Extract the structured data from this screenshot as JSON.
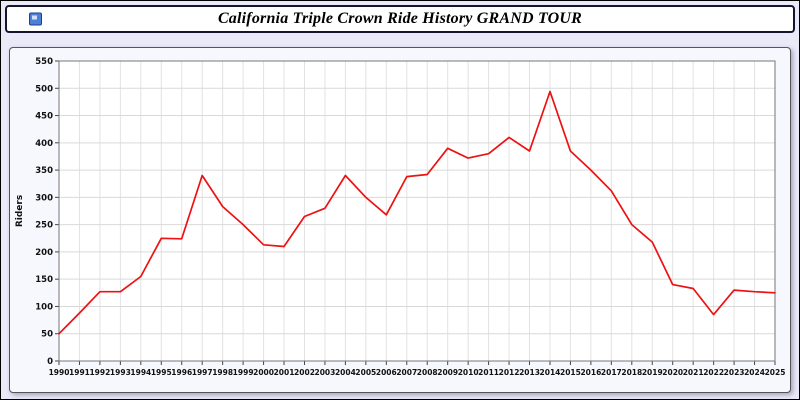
{
  "header": {
    "title": "California Triple Crown Ride History GRAND TOUR"
  },
  "chart_data": {
    "type": "line",
    "title": "California Triple Crown Ride History GRAND TOUR",
    "xlabel": "",
    "ylabel": "Riders",
    "x": [
      1990,
      1991,
      1992,
      1993,
      1994,
      1995,
      1996,
      1997,
      1998,
      1999,
      2000,
      2001,
      2002,
      2003,
      2004,
      2005,
      2006,
      2007,
      2008,
      2009,
      2010,
      2011,
      2012,
      2013,
      2014,
      2015,
      2016,
      2017,
      2018,
      2019,
      2020,
      2021,
      2022,
      2023,
      2024,
      2025
    ],
    "values": [
      50,
      88,
      127,
      127,
      155,
      225,
      224,
      340,
      283,
      250,
      213,
      210,
      265,
      280,
      340,
      300,
      268,
      338,
      342,
      390,
      372,
      380,
      410,
      385,
      494,
      385,
      350,
      312,
      250,
      218,
      140,
      133,
      85,
      130,
      127,
      125
    ],
    "ylim": [
      0,
      550
    ],
    "ytick_step": 50,
    "line_color": "#ee1111",
    "grid": true,
    "legend": "none"
  }
}
